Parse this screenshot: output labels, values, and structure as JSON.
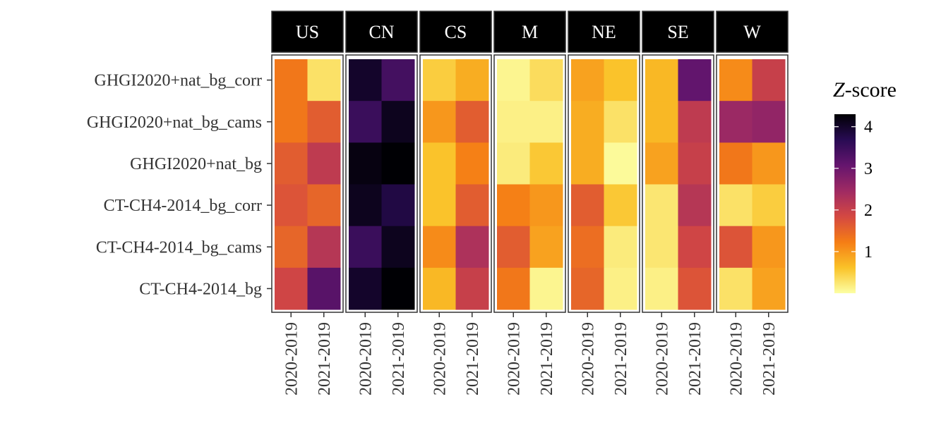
{
  "chart_data": {
    "type": "heatmap",
    "title": "",
    "xlabel": "",
    "ylabel": "",
    "facets": [
      "US",
      "CN",
      "CS",
      "M",
      "NE",
      "SE",
      "W"
    ],
    "x_categories": [
      "2020-2019",
      "2021-2019"
    ],
    "y_categories": [
      "GHGI2020+nat_bg_corr",
      "GHGI2020+nat_bg_cams",
      "GHGI2020+nat_bg",
      "CT-CH4-2014_bg_corr",
      "CT-CH4-2014_bg_cams",
      "CT-CH4-2014_bg"
    ],
    "values": {
      "US": [
        [
          1.3,
          0.3
        ],
        [
          1.3,
          1.6
        ],
        [
          1.6,
          2.1
        ],
        [
          1.7,
          1.5
        ],
        [
          1.5,
          2.2
        ],
        [
          1.9,
          3.2
        ]
      ],
      "CN": [
        [
          4.0,
          3.4
        ],
        [
          3.5,
          4.1
        ],
        [
          4.2,
          4.3
        ],
        [
          4.1,
          3.8
        ],
        [
          3.5,
          4.1
        ],
        [
          4.0,
          4.3
        ]
      ],
      "CS": [
        [
          0.5,
          0.8
        ],
        [
          1.0,
          1.6
        ],
        [
          0.6,
          1.2
        ],
        [
          0.6,
          1.6
        ],
        [
          1.1,
          2.3
        ],
        [
          0.7,
          2.0
        ]
      ],
      "M": [
        [
          0.1,
          0.35
        ],
        [
          0.15,
          0.15
        ],
        [
          0.2,
          0.55
        ],
        [
          1.2,
          1.0
        ],
        [
          1.6,
          0.9
        ],
        [
          1.3,
          0.1
        ]
      ],
      "NE": [
        [
          0.9,
          0.6
        ],
        [
          0.8,
          0.3
        ],
        [
          0.8,
          0.05
        ],
        [
          1.6,
          0.55
        ],
        [
          1.4,
          0.2
        ],
        [
          1.5,
          0.15
        ]
      ],
      "SE": [
        [
          0.7,
          3.1
        ],
        [
          0.7,
          2.1
        ],
        [
          0.9,
          2.0
        ],
        [
          0.25,
          2.2
        ],
        [
          0.25,
          1.9
        ],
        [
          0.15,
          1.7
        ]
      ],
      "W": [
        [
          1.1,
          2.0
        ],
        [
          2.5,
          2.6
        ],
        [
          1.3,
          1.0
        ],
        [
          0.3,
          0.5
        ],
        [
          1.7,
          1.0
        ],
        [
          0.3,
          0.9
        ]
      ]
    },
    "legend": {
      "title_italic": "Z",
      "title_rest": "-score",
      "min": 0,
      "max": 4.3,
      "ticks": [
        1,
        2,
        3,
        4
      ],
      "placement": "right"
    },
    "colormap": [
      "#fcffa4",
      "#fac228",
      "#f57d15",
      "#d44842",
      "#9f2a63",
      "#65156e",
      "#280b53",
      "#000004"
    ],
    "grid": false
  }
}
